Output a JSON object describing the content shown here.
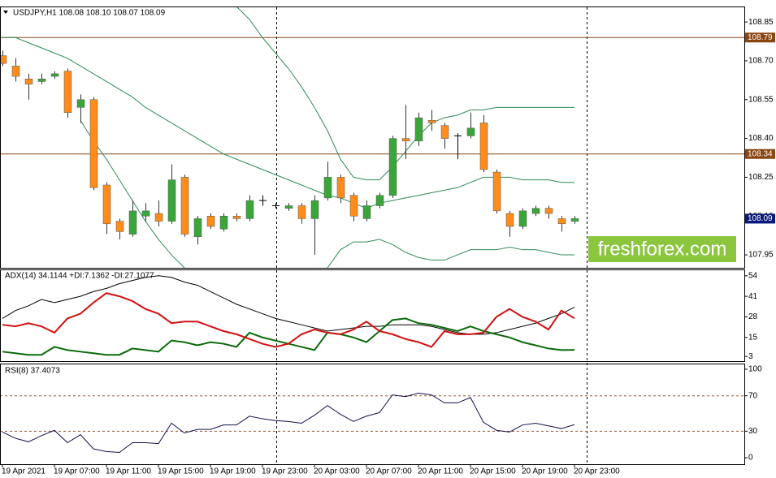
{
  "chart_data": [
    {
      "type": "candlestick",
      "title": "USDJPY,H1  108.08 108.10 108.07 108.09",
      "categories": [
        "19 Apr 2021",
        null,
        null,
        null,
        "19 Apr 07:00",
        null,
        null,
        null,
        "19 Apr 11:00",
        null,
        null,
        null,
        "19 Apr 15:00",
        null,
        null,
        null,
        "19 Apr 19:00",
        null,
        null,
        null,
        "19 Apr 23:00",
        null,
        null,
        null,
        "20 Apr 03:00",
        null,
        null,
        null,
        "20 Apr 07:00",
        null,
        null,
        null,
        "20 Apr 11:00",
        null,
        null,
        null,
        "20 Apr 15:00",
        null,
        null,
        null,
        "20 Apr 19:00",
        null,
        null,
        null,
        "20 Apr 23:00"
      ],
      "open": [
        108.72,
        108.68,
        108.63,
        108.62,
        108.64,
        108.66,
        108.52,
        108.55,
        108.22,
        108.08,
        108.03,
        108.1,
        108.11,
        108.08,
        108.25,
        108.02,
        108.1,
        108.05,
        108.1,
        108.09,
        108.16,
        108.14,
        108.13,
        108.14,
        108.09,
        108.17,
        108.25,
        108.18,
        108.09,
        108.14,
        108.18,
        108.4,
        108.39,
        108.47,
        108.45,
        108.41,
        108.41,
        108.46,
        108.27,
        108.11,
        108.06,
        108.11,
        108.13,
        108.09,
        108.08
      ],
      "high": [
        108.74,
        108.71,
        108.65,
        108.65,
        108.66,
        108.67,
        108.57,
        108.56,
        108.23,
        108.09,
        108.16,
        108.15,
        108.16,
        108.3,
        108.26,
        108.1,
        108.11,
        108.11,
        108.11,
        108.18,
        108.18,
        108.15,
        108.15,
        108.15,
        108.18,
        108.31,
        108.26,
        108.19,
        108.16,
        108.19,
        108.41,
        108.53,
        108.5,
        108.51,
        108.46,
        108.42,
        108.5,
        108.49,
        108.28,
        108.12,
        108.13,
        108.14,
        108.14,
        108.1,
        108.1
      ],
      "low": [
        108.68,
        108.62,
        108.55,
        108.61,
        108.63,
        108.48,
        108.46,
        108.2,
        108.03,
        108.01,
        108.02,
        108.08,
        108.06,
        108.07,
        108.02,
        107.99,
        108.05,
        108.04,
        108.08,
        108.08,
        108.14,
        108.13,
        108.12,
        108.07,
        107.95,
        108.16,
        108.15,
        108.08,
        108.08,
        108.13,
        108.17,
        108.32,
        108.37,
        108.43,
        108.36,
        108.32,
        108.4,
        108.27,
        108.11,
        108.02,
        108.05,
        108.1,
        108.09,
        108.04,
        108.07
      ],
      "close": [
        108.69,
        108.64,
        108.61,
        108.63,
        108.65,
        108.5,
        108.55,
        108.21,
        108.07,
        108.04,
        108.12,
        108.12,
        108.08,
        108.24,
        108.03,
        108.09,
        108.06,
        108.1,
        108.09,
        108.16,
        108.16,
        108.14,
        108.14,
        108.09,
        108.16,
        108.25,
        108.17,
        108.1,
        108.14,
        108.18,
        108.4,
        108.39,
        108.48,
        108.46,
        108.4,
        108.41,
        108.44,
        108.28,
        108.12,
        108.06,
        108.12,
        108.13,
        108.11,
        108.07,
        108.09
      ],
      "series": [
        {
          "color": "#2e8b57",
          "values": [
            108.79,
            108.79,
            108.77,
            108.75,
            108.73,
            108.71,
            108.68,
            108.65,
            108.62,
            108.59,
            108.56,
            108.52,
            108.49,
            108.46,
            108.43,
            108.4,
            108.37,
            108.34,
            108.32,
            108.3,
            108.28,
            108.26,
            108.24,
            108.22,
            108.2,
            108.18,
            108.17,
            108.15,
            108.13,
            108.15,
            108.16,
            108.17,
            108.18,
            108.19,
            108.2,
            108.21,
            108.23,
            108.25,
            108.25,
            108.25,
            108.24,
            108.24,
            108.24,
            108.23,
            108.23
          ]
        },
        {
          "color": "#2e8b57",
          "values": [
            null,
            null,
            null,
            null,
            null,
            null,
            null,
            null,
            null,
            null,
            null,
            null,
            null,
            null,
            null,
            null,
            null,
            null,
            108.91,
            108.86,
            108.79,
            108.73,
            108.67,
            108.6,
            108.52,
            108.43,
            108.32,
            108.25,
            108.24,
            108.24,
            108.29,
            108.35,
            108.41,
            108.46,
            108.48,
            108.49,
            108.51,
            108.51,
            108.52,
            108.52,
            108.52,
            108.52,
            108.52,
            108.52,
            108.52
          ]
        },
        {
          "color": "#2e8b57",
          "values": [
            null,
            null,
            null,
            null,
            null,
            null,
            108.47,
            108.39,
            108.32,
            108.24,
            108.16,
            108.08,
            108.01,
            107.95,
            107.9,
            null,
            null,
            null,
            null,
            null,
            null,
            null,
            null,
            null,
            null,
            107.9,
            107.97,
            108.0,
            108.0,
            108.01,
            107.99,
            107.96,
            107.94,
            107.93,
            107.93,
            107.95,
            107.97,
            107.97,
            107.97,
            107.98,
            107.97,
            107.97,
            107.96,
            107.95,
            107.95
          ]
        }
      ],
      "up_color": "#3aa63a",
      "down_color": "#ff8c1a",
      "doji_color": "#000000",
      "ylim": [
        107.9,
        108.91
      ],
      "yticks": [
        108.85,
        {
          "value": 108.7,
          "label": "108.70"
        },
        108.55,
        {
          "value": 108.4,
          "label": "108.40"
        },
        108.25,
        {
          "value": 108.1,
          "label": "108.10"
        },
        107.95
      ],
      "levels": [
        108.79,
        108.34
      ],
      "level_color": "#8b4513",
      "last_price_color": "#0a1a7a",
      "watermark": "freshforex.com",
      "watermark_color": "#8cc63f"
    },
    {
      "type": "line",
      "title": "ADX(14) 34.1144 +DI:7.1362 -DI:27.1077",
      "series": [
        {
          "color": "#000000",
          "values": [
            27,
            32,
            35,
            39,
            37,
            39,
            41,
            44,
            46,
            49,
            51,
            53,
            54,
            53,
            50,
            48,
            44,
            40,
            36,
            33,
            30,
            27,
            25,
            23,
            21,
            19,
            20,
            21,
            22,
            22,
            23,
            23,
            23,
            22,
            20,
            18,
            17,
            17,
            18,
            20,
            22,
            24,
            27,
            30,
            34.11
          ]
        },
        {
          "color": "#0b6b0b",
          "values": [
            6,
            5,
            4,
            4,
            9,
            7,
            6,
            5,
            4,
            4,
            8,
            7,
            6,
            13,
            12,
            10,
            12,
            11,
            9,
            18,
            15,
            13,
            11,
            9,
            7,
            18,
            17,
            15,
            12,
            19,
            26,
            27,
            24,
            23,
            21,
            19,
            22,
            19,
            17,
            15,
            12,
            10,
            8,
            7,
            7.14
          ]
        },
        {
          "color": "#d01010",
          "values": [
            23,
            22,
            24,
            22,
            18,
            27,
            30,
            37,
            43,
            41,
            38,
            33,
            30,
            24,
            25,
            25,
            22,
            19,
            17,
            14,
            11,
            9,
            11,
            17,
            20,
            18,
            17,
            20,
            25,
            19,
            17,
            14,
            12,
            9,
            19,
            17,
            17,
            18,
            28,
            33,
            28,
            25,
            20,
            32,
            27.11
          ]
        }
      ],
      "ylim": [
        0,
        58
      ],
      "yticks": [
        54,
        41,
        28,
        15,
        3
      ]
    },
    {
      "type": "line",
      "title": "RSI(8) 37.4073",
      "series": [
        {
          "color": "#10104a",
          "values": [
            29,
            22,
            18,
            25,
            31,
            17,
            26,
            10,
            7,
            6,
            17,
            17,
            16,
            39,
            28,
            32,
            32,
            37,
            37,
            47,
            44,
            42,
            41,
            39,
            48,
            59,
            49,
            41,
            47,
            51,
            71,
            69,
            73,
            71,
            62,
            62,
            68,
            40,
            31,
            29,
            37,
            39,
            36,
            33,
            37.41
          ]
        }
      ],
      "ylim": [
        -7.3,
        106.4
      ],
      "yticks": [
        100,
        70,
        30,
        0
      ],
      "levels": [
        70,
        30
      ],
      "level_color": "#a0522d"
    }
  ]
}
